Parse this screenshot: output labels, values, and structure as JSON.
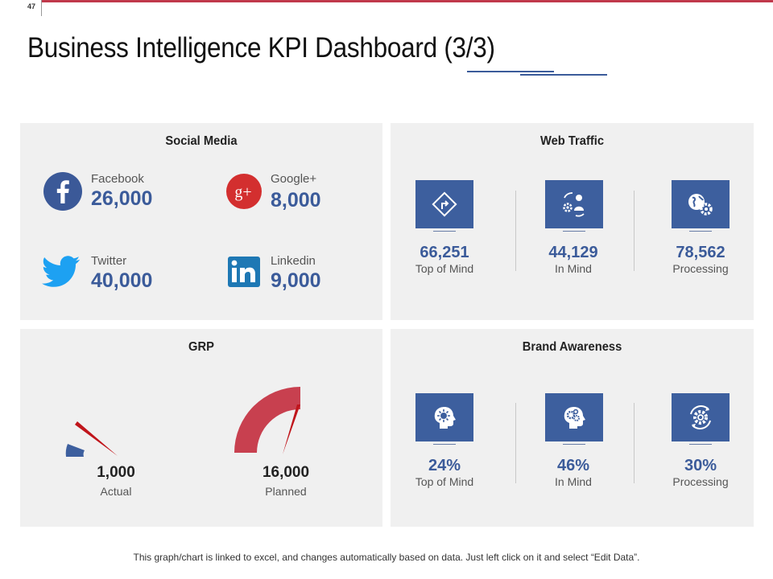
{
  "page_number": "47",
  "title": "Business Intelligence KPI Dashboard (3/3)",
  "social_media": {
    "title": "Social Media",
    "items": [
      {
        "label": "Facebook",
        "value": "26,000",
        "icon": "facebook-icon",
        "color": "#3b5998"
      },
      {
        "label": "Google+",
        "value": "8,000",
        "icon": "google-plus-icon",
        "color": "#d32f2f"
      },
      {
        "label": "Twitter",
        "value": "40,000",
        "icon": "twitter-icon",
        "color": "#1da1f2"
      },
      {
        "label": "Linkedin",
        "value": "9,000",
        "icon": "linkedin-icon",
        "color": "#1e78b4"
      }
    ]
  },
  "web_traffic": {
    "title": "Web Traffic",
    "items": [
      {
        "value": "66,251",
        "label": "Top of Mind",
        "icon": "road-sign-icon"
      },
      {
        "value": "44,129",
        "label": "In Mind",
        "icon": "user-gears-icon"
      },
      {
        "value": "78,562",
        "label": "Processing",
        "icon": "globe-gear-icon"
      }
    ]
  },
  "grp": {
    "title": "GRP",
    "gauges": [
      {
        "value": "1,000",
        "label": "Actual",
        "fill": 0.0625,
        "color": "#3d5f9e"
      },
      {
        "value": "16,000",
        "label": "Planned",
        "fill": 1.0,
        "color": "#c8404f"
      }
    ],
    "max": 16000
  },
  "brand_awareness": {
    "title": "Brand Awareness",
    "items": [
      {
        "value": "24%",
        "label": "Top of Mind",
        "icon": "head-idea-icon"
      },
      {
        "value": "46%",
        "label": "In Mind",
        "icon": "head-gears-icon"
      },
      {
        "value": "30%",
        "label": "Processing",
        "icon": "gear-cycle-icon"
      }
    ]
  },
  "colors": {
    "accent": "#3d5f9e",
    "red": "#c0394b",
    "panel": "#f0f0f0"
  },
  "footer": "This graph/chart is linked to excel, and changes automatically based on data. Just left click on it and select “Edit Data”."
}
